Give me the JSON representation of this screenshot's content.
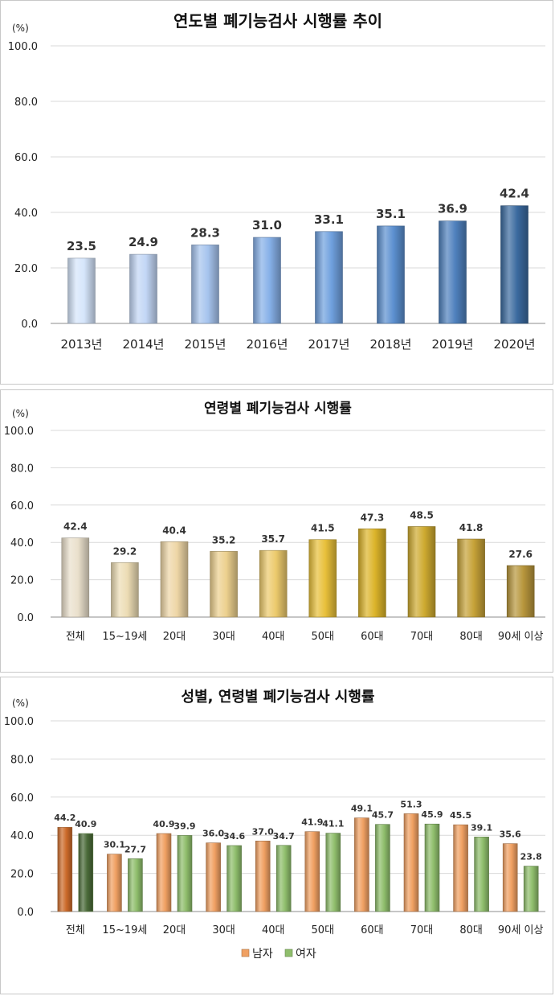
{
  "chart_data": [
    {
      "type": "bar",
      "title": "연도별 폐기능검사 시행률 추이",
      "ylabel": "(%)",
      "ylim": [
        0,
        100
      ],
      "yticks": [
        "0.0",
        "20.0",
        "40.0",
        "60.0",
        "80.0",
        "100.0"
      ],
      "grid": true,
      "categories": [
        "2013년",
        "2014년",
        "2015년",
        "2016년",
        "2017년",
        "2018년",
        "2019년",
        "2020년"
      ],
      "values": [
        23.5,
        24.9,
        28.3,
        31.0,
        33.1,
        35.1,
        36.9,
        42.4
      ],
      "value_labels": [
        "23.5",
        "24.9",
        "28.3",
        "31.0",
        "33.1",
        "35.1",
        "36.9",
        "42.4"
      ],
      "colors": [
        "#d5e5fb",
        "#c2d6f5",
        "#a6c4ee",
        "#86b0e8",
        "#6fa0de",
        "#5c90d0",
        "#4f81bd",
        "#3b6a9f"
      ]
    },
    {
      "type": "bar",
      "title": "연령별 폐기능검사 시행률",
      "ylabel": "(%)",
      "ylim": [
        0,
        100
      ],
      "yticks": [
        "0.0",
        "20.0",
        "40.0",
        "60.0",
        "80.0",
        "100.0"
      ],
      "grid": true,
      "categories": [
        "전체",
        "15~19세",
        "20대",
        "30대",
        "40대",
        "50대",
        "60대",
        "70대",
        "80대",
        "90세 이상"
      ],
      "values": [
        42.4,
        29.2,
        40.4,
        35.2,
        35.7,
        41.5,
        47.3,
        48.5,
        41.8,
        27.6
      ],
      "value_labels": [
        "42.4",
        "29.2",
        "40.4",
        "35.2",
        "35.7",
        "41.5",
        "47.3",
        "48.5",
        "41.8",
        "27.6"
      ],
      "colors": [
        "#eae0cc",
        "#ecdcb4",
        "#eed6a6",
        "#ecd08e",
        "#ecca6c",
        "#e8c03a",
        "#dcb42a",
        "#ceaa30",
        "#c6a238",
        "#b8963c"
      ]
    },
    {
      "type": "bar",
      "title": "성별, 연령별 폐기능검사 시행률",
      "ylabel": "(%)",
      "ylim": [
        0,
        100
      ],
      "yticks": [
        "0.0",
        "20.0",
        "40.0",
        "60.0",
        "80.0",
        "100.0"
      ],
      "grid": true,
      "legend": "bottom",
      "categories": [
        "전체",
        "15~19세",
        "20대",
        "30대",
        "40대",
        "50대",
        "60대",
        "70대",
        "80대",
        "90세 이상"
      ],
      "series": [
        {
          "name": "남자",
          "values": [
            44.2,
            30.1,
            40.9,
            36.0,
            37.0,
            41.9,
            49.1,
            51.3,
            45.5,
            35.6
          ],
          "value_labels": [
            "44.2",
            "30.1",
            "40.9",
            "36.0",
            "37.0",
            "41.9",
            "49.1",
            "51.3",
            "45.5",
            "35.6"
          ],
          "color": "#f0a062",
          "first_color": "#cc6a2a"
        },
        {
          "name": "여자",
          "values": [
            40.9,
            27.7,
            39.9,
            34.6,
            34.7,
            41.1,
            45.7,
            45.9,
            39.1,
            23.8
          ],
          "value_labels": [
            "40.9",
            "27.7",
            "39.9",
            "34.6",
            "34.7",
            "41.1",
            "45.7",
            "45.9",
            "39.1",
            "23.8"
          ],
          "color": "#8fbe6c",
          "first_color": "#4a6a38"
        }
      ]
    }
  ]
}
